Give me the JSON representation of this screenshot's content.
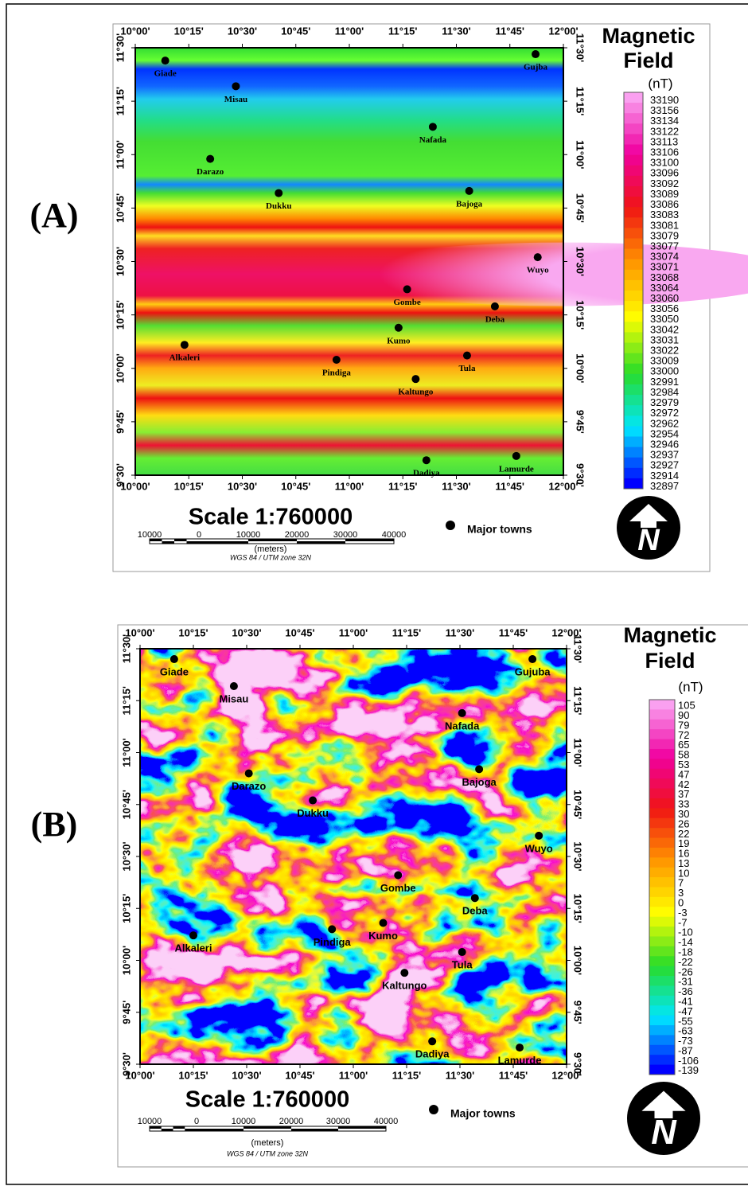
{
  "panels": [
    {
      "label": "(A)",
      "title": [
        "Magnetic",
        "Field"
      ],
      "unit": "(nT)",
      "legend": [
        33190,
        33156,
        33134,
        33122,
        33113,
        33106,
        33100,
        33096,
        33092,
        33089,
        33086,
        33083,
        33081,
        33079,
        33077,
        33074,
        33071,
        33068,
        33064,
        33060,
        33056,
        33050,
        33042,
        33031,
        33022,
        33009,
        33000,
        32991,
        32984,
        32979,
        32972,
        32962,
        32954,
        32946,
        32937,
        32927,
        32914,
        32897
      ],
      "xticks": [
        {
          "value": 10,
          "label": "10°00'"
        },
        {
          "value": 10.25,
          "label": "10°15'"
        },
        {
          "value": 10.5,
          "label": "10°30'"
        },
        {
          "value": 10.75,
          "label": "10°45'"
        },
        {
          "value": 11,
          "label": "11°00'"
        },
        {
          "value": 11.25,
          "label": "11°15'"
        },
        {
          "value": 11.5,
          "label": "11°30'"
        },
        {
          "value": 11.75,
          "label": "11°45'"
        },
        {
          "value": 12,
          "label": "12°00'"
        }
      ],
      "yticks": [
        {
          "value": 9.5,
          "label": "9°30'"
        },
        {
          "value": 9.75,
          "label": "9°45'"
        },
        {
          "value": 10,
          "label": "10°00'"
        },
        {
          "value": 10.25,
          "label": "10°15'"
        },
        {
          "value": 10.5,
          "label": "10°30'"
        },
        {
          "value": 10.75,
          "label": "10°45'"
        },
        {
          "value": 11,
          "label": "11°00'"
        },
        {
          "value": 11.25,
          "label": "11°15'"
        },
        {
          "value": 11.5,
          "label": "11°30'"
        }
      ],
      "towns": [
        {
          "name": "Giade",
          "lon": 10.14,
          "lat": 11.44
        },
        {
          "name": "Gujba",
          "lon": 11.87,
          "lat": 11.47
        },
        {
          "name": "Misau",
          "lon": 10.47,
          "lat": 11.32
        },
        {
          "name": "Nafada",
          "lon": 11.39,
          "lat": 11.13
        },
        {
          "name": "Darazo",
          "lon": 10.35,
          "lat": 10.98
        },
        {
          "name": "Dukku",
          "lon": 10.67,
          "lat": 10.82
        },
        {
          "name": "Bajoga",
          "lon": 11.56,
          "lat": 10.83
        },
        {
          "name": "Wuyo",
          "lon": 11.88,
          "lat": 10.52
        },
        {
          "name": "Gombe",
          "lon": 11.27,
          "lat": 10.37
        },
        {
          "name": "Deba",
          "lon": 11.68,
          "lat": 10.29
        },
        {
          "name": "Kumo",
          "lon": 11.23,
          "lat": 10.19
        },
        {
          "name": "Alkaleri",
          "lon": 10.23,
          "lat": 10.11
        },
        {
          "name": "Tula",
          "lon": 11.55,
          "lat": 10.06
        },
        {
          "name": "Pindiga",
          "lon": 10.94,
          "lat": 10.04
        },
        {
          "name": "Kaltungo",
          "lon": 11.31,
          "lat": 9.95
        },
        {
          "name": "Dadiya",
          "lon": 11.36,
          "lat": 9.57
        },
        {
          "name": "Lamurde",
          "lon": 11.78,
          "lat": 9.59
        }
      ],
      "scale": "Scale 1:760000",
      "scale_labels": [
        "10000",
        "0",
        "10000",
        "20000",
        "30000",
        "40000"
      ],
      "scale_unit": "(meters)",
      "projection": "WGS 84 / UTM zone 32N",
      "key": "Major towns",
      "north": "N"
    },
    {
      "label": "(B)",
      "title": [
        "Magnetic",
        "Field"
      ],
      "unit": "(nT)",
      "legend": [
        105,
        90,
        79,
        72,
        65,
        58,
        53,
        47,
        42,
        37,
        33,
        30,
        26,
        22,
        19,
        16,
        13,
        10,
        7,
        3,
        0,
        -3,
        -7,
        -10,
        -14,
        -18,
        -22,
        -26,
        -31,
        -36,
        -41,
        -47,
        -55,
        -63,
        -73,
        -87,
        -106,
        -139
      ],
      "xticks": [
        {
          "value": 10,
          "label": "10°00'"
        },
        {
          "value": 10.25,
          "label": "10°15'"
        },
        {
          "value": 10.5,
          "label": "10°30'"
        },
        {
          "value": 10.75,
          "label": "10°45'"
        },
        {
          "value": 11,
          "label": "11°00'"
        },
        {
          "value": 11.25,
          "label": "11°15'"
        },
        {
          "value": 11.5,
          "label": "11°30'"
        },
        {
          "value": 11.75,
          "label": "11°45'"
        },
        {
          "value": 12,
          "label": "12°00'"
        }
      ],
      "yticks": [
        {
          "value": 9.5,
          "label": "9°30'"
        },
        {
          "value": 9.75,
          "label": "9°45'"
        },
        {
          "value": 10,
          "label": "10°00'"
        },
        {
          "value": 10.25,
          "label": "10°15'"
        },
        {
          "value": 10.5,
          "label": "10°30'"
        },
        {
          "value": 10.75,
          "label": "10°45'"
        },
        {
          "value": 11,
          "label": "11°00'"
        },
        {
          "value": 11.25,
          "label": "11°15'"
        },
        {
          "value": 11.5,
          "label": "11°30'"
        }
      ],
      "towns": [
        {
          "name": "Giade",
          "lon": 10.16,
          "lat": 11.45
        },
        {
          "name": "Gujuba",
          "lon": 11.84,
          "lat": 11.45
        },
        {
          "name": "Misau",
          "lon": 10.44,
          "lat": 11.32
        },
        {
          "name": "Nafada",
          "lon": 11.51,
          "lat": 11.19
        },
        {
          "name": "Darazo",
          "lon": 10.51,
          "lat": 10.9
        },
        {
          "name": "Dukku",
          "lon": 10.81,
          "lat": 10.77
        },
        {
          "name": "Bajoga",
          "lon": 11.59,
          "lat": 10.92
        },
        {
          "name": "Wuyo",
          "lon": 11.87,
          "lat": 10.6
        },
        {
          "name": "Gombe",
          "lon": 11.21,
          "lat": 10.41
        },
        {
          "name": "Deba",
          "lon": 11.57,
          "lat": 10.3
        },
        {
          "name": "Kumo",
          "lon": 11.14,
          "lat": 10.18
        },
        {
          "name": "Alkaleri",
          "lon": 10.25,
          "lat": 10.12
        },
        {
          "name": "Tula",
          "lon": 11.51,
          "lat": 10.04
        },
        {
          "name": "Pindiga",
          "lon": 10.9,
          "lat": 10.15
        },
        {
          "name": "Kaltungo",
          "lon": 11.24,
          "lat": 9.94
        },
        {
          "name": "Dadiya",
          "lon": 11.37,
          "lat": 9.61
        },
        {
          "name": "Lamurde",
          "lon": 11.78,
          "lat": 9.58
        }
      ],
      "scale": "Scale 1:760000",
      "scale_labels": [
        "10000",
        "0",
        "10000",
        "20000",
        "30000",
        "40000"
      ],
      "scale_unit": "(meters)",
      "projection": "WGS 84 / UTM zone 32N",
      "key": "Major towns",
      "north": "N"
    }
  ]
}
